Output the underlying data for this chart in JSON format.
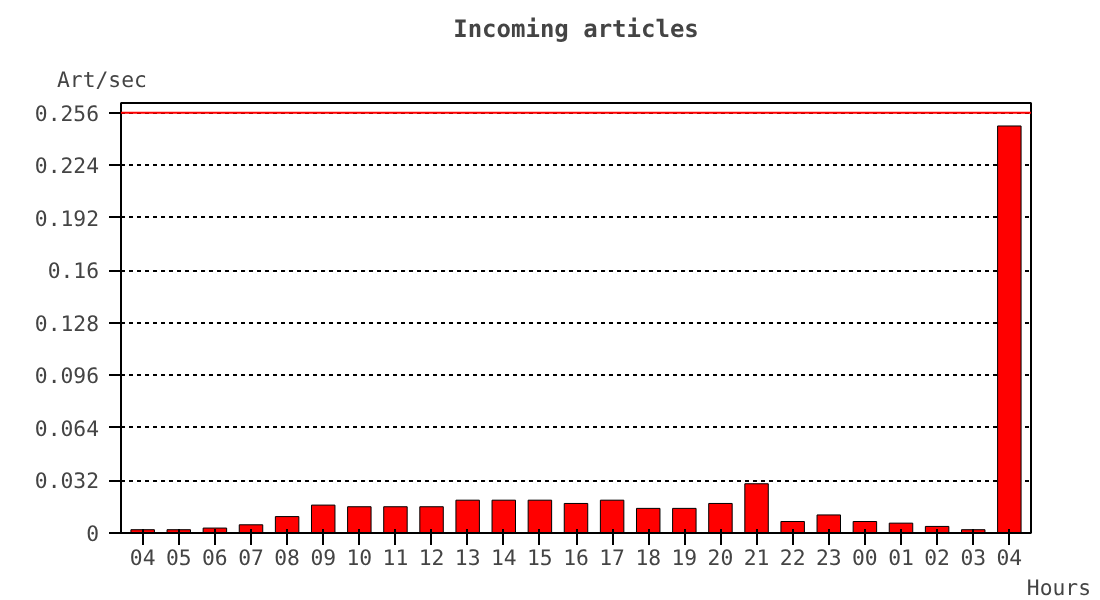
{
  "chart_data": {
    "type": "bar",
    "title": "Incoming articles",
    "xlabel": "Hours",
    "ylabel": "Art/sec",
    "categories": [
      "04",
      "05",
      "06",
      "07",
      "08",
      "09",
      "10",
      "11",
      "12",
      "13",
      "14",
      "15",
      "16",
      "17",
      "18",
      "19",
      "20",
      "21",
      "22",
      "23",
      "00",
      "01",
      "02",
      "03",
      "04"
    ],
    "values": [
      0.002,
      0.002,
      0.003,
      0.005,
      0.01,
      0.017,
      0.016,
      0.016,
      0.016,
      0.02,
      0.02,
      0.02,
      0.018,
      0.02,
      0.015,
      0.015,
      0.018,
      0.03,
      0.007,
      0.011,
      0.007,
      0.006,
      0.004,
      0.002,
      0.248
    ],
    "color": "#ff0000",
    "ylim": [
      0,
      0.262
    ],
    "yticks": [
      0,
      0.032,
      0.064,
      0.096,
      0.128,
      0.16,
      0.192,
      0.224,
      0.256
    ],
    "ref_lines": [
      {
        "axis": "y",
        "value": 0.256,
        "color": "#ff0000"
      }
    ],
    "grid": "y"
  }
}
